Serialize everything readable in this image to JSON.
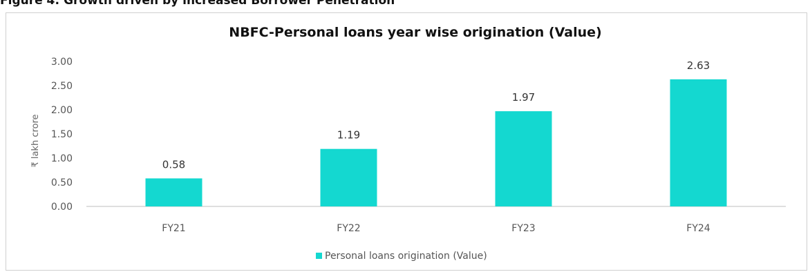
{
  "figure_caption": "Figure 4: Growth driven by increased Borrower Penetration",
  "chart_data": {
    "type": "bar",
    "title": "NBFC-Personal loans year wise origination (Value)",
    "xlabel": "",
    "ylabel": "₹ lakh crore",
    "categories": [
      "FY21",
      "FY22",
      "FY23",
      "FY24"
    ],
    "series": [
      {
        "name": "Personal loans origination (Value)",
        "values": [
          0.58,
          1.19,
          1.97,
          2.63
        ],
        "color": "#14d8d0"
      }
    ],
    "data_labels": [
      "0.58",
      "1.19",
      "1.97",
      "2.63"
    ],
    "ylim": [
      0,
      3
    ],
    "yticks": [
      "0.00",
      "0.50",
      "1.00",
      "1.50",
      "2.00",
      "2.50",
      "3.00"
    ],
    "ytick_values": [
      0,
      0.5,
      1,
      1.5,
      2,
      2.5,
      3
    ],
    "grid": false,
    "legend_position": "bottom"
  }
}
